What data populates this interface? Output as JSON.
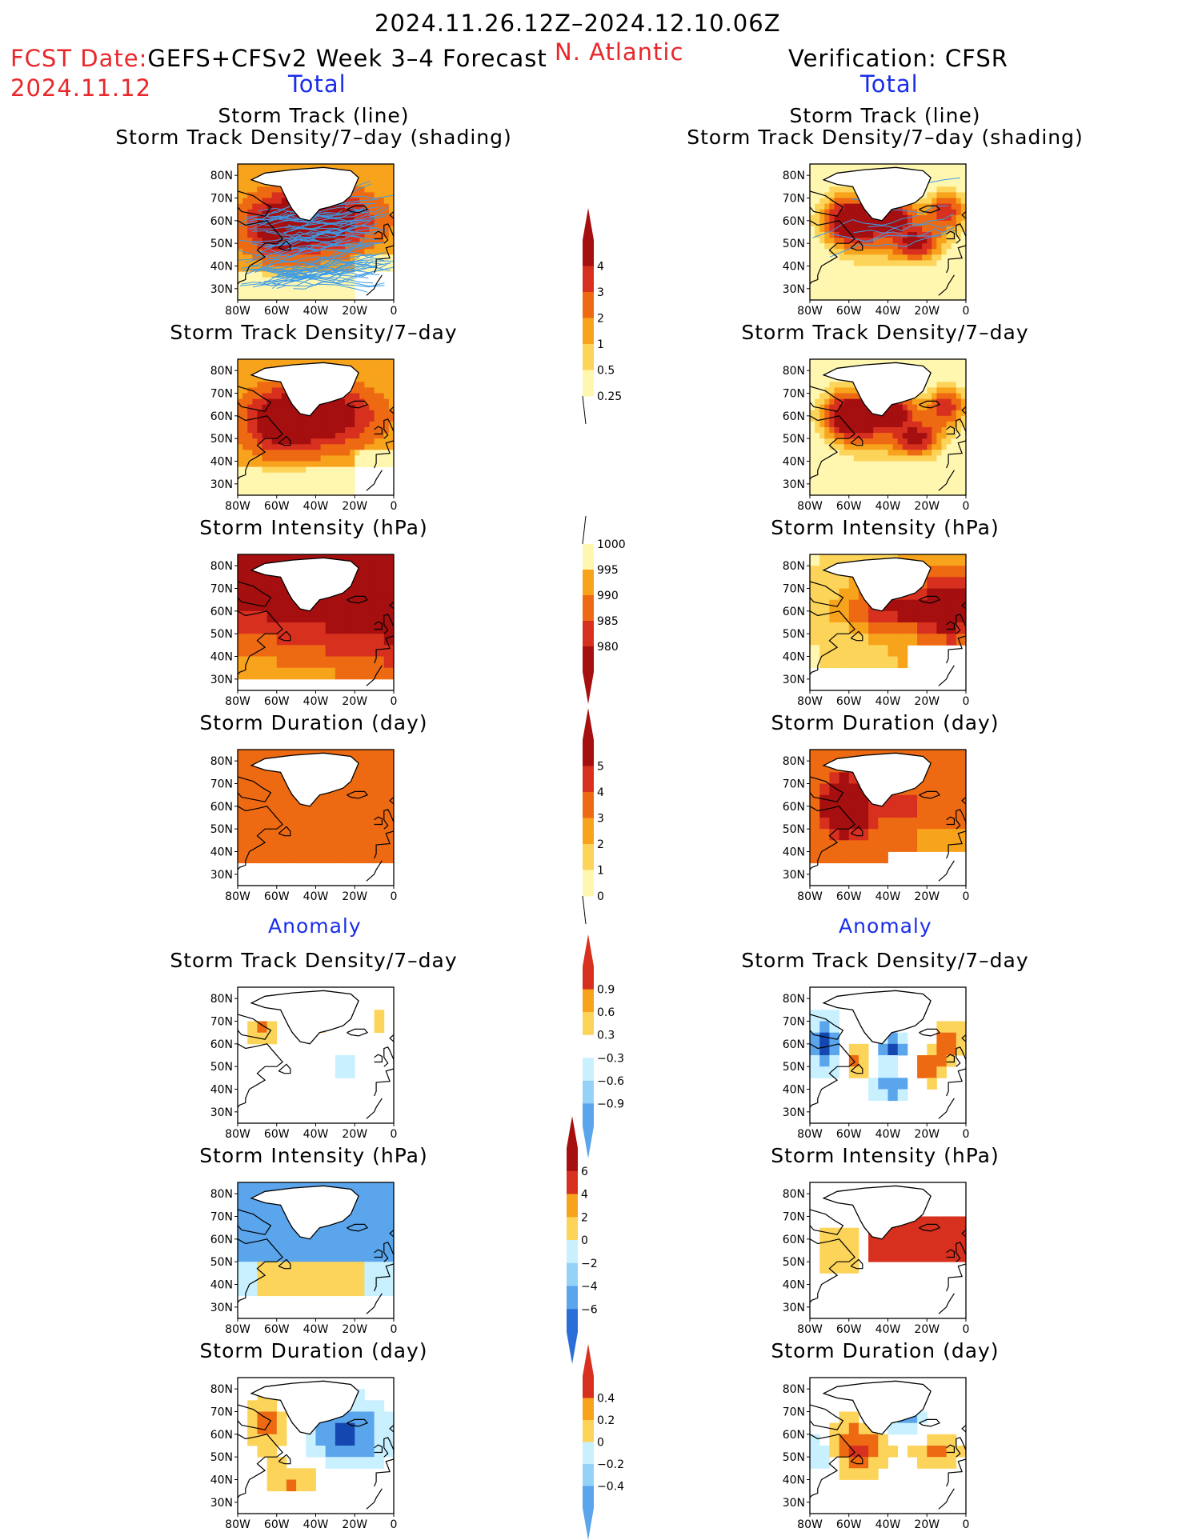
{
  "header": {
    "date_range": "2024.11.26.12Z–2024.12.10.06Z",
    "fcst_label": "FCST Date:",
    "fcst_date": "2024.11.12",
    "model": "GEFS+CFSv2 Week 3–4 Forecast",
    "region": "N. Atlantic",
    "verification": "Verification: CFSR",
    "total_left": "Total",
    "total_right": "Total",
    "anomaly_left": "Anomaly",
    "anomaly_right": "Anomaly"
  },
  "panel_titles": {
    "track_line": "Storm Track (line)",
    "track_shading": "Storm Track Density/7–day (shading)",
    "density": "Storm Track Density/7–day",
    "intensity": "Storm Intensity (hPa)",
    "duration": "Storm Duration (day)"
  },
  "axes": {
    "lat_labels": [
      "80N",
      "70N",
      "60N",
      "50N",
      "40N",
      "30N"
    ],
    "lon_labels": [
      "80W",
      "60W",
      "40W",
      "20W",
      "0"
    ]
  },
  "colorbars": {
    "density": [
      "4",
      "3",
      "2",
      "1",
      "0.5",
      "0.25"
    ],
    "intensity": [
      "1000",
      "995",
      "990",
      "985",
      "980"
    ],
    "duration": [
      "5",
      "4",
      "3",
      "2",
      "1",
      "0"
    ],
    "density_anom": [
      "0.9",
      "0.6",
      "0.3",
      "−0.3",
      "−0.6",
      "−0.9"
    ],
    "intensity_anom": [
      "6",
      "4",
      "2",
      "0",
      "−2",
      "−4",
      "−6"
    ],
    "duration_anom": [
      "0.4",
      "0.2",
      "0",
      "−0.2",
      "−0.4"
    ]
  },
  "colors": {
    "warm": [
      "#fff7b0",
      "#fcd45a",
      "#f8a31c",
      "#ee6a12",
      "#d7301f",
      "#a50f0f"
    ],
    "cool": [
      "#c8f0ff",
      "#96d2f8",
      "#5aa5ec",
      "#2a6fd8",
      "#1447b0"
    ],
    "track_line": "#3c9be8"
  }
}
